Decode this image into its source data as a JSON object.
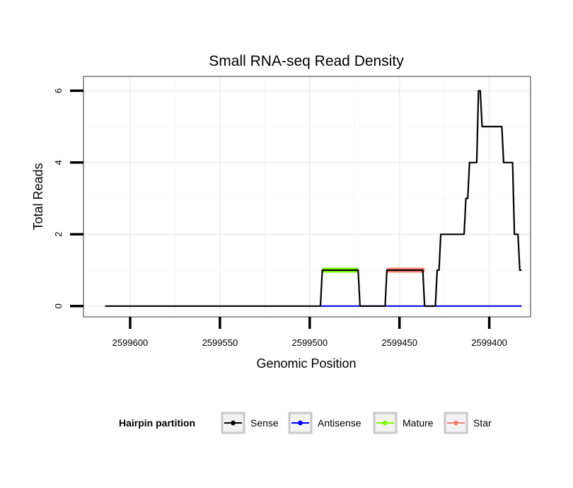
{
  "chart_data": {
    "type": "line",
    "title": "Small RNA-seq Read Density",
    "xlabel": "Genomic Position",
    "ylabel": "Total Reads",
    "x_reversed": true,
    "xlim": [
      2599626,
      2599377
    ],
    "ylim": [
      -0.3,
      6.4
    ],
    "x_ticks": [
      2599600,
      2599550,
      2599500,
      2599450,
      2599400
    ],
    "x_tick_labels": [
      "2599600",
      "2599550",
      "2599500",
      "2599450",
      "2599400"
    ],
    "y_ticks": [
      0,
      2,
      4,
      6
    ],
    "y_tick_labels": [
      "0",
      "2",
      "4",
      "6"
    ],
    "grid": true,
    "legend": {
      "title": "Hairpin partition",
      "position": "bottom",
      "entries": [
        "Sense",
        "Antisense",
        "Mature",
        "Star"
      ]
    },
    "series": [
      {
        "name": "Sense",
        "color": "#000000",
        "x": [
          2599614,
          2599494,
          2599493,
          2599473,
          2599472,
          2599458,
          2599457,
          2599437,
          2599436,
          2599430,
          2599429,
          2599428,
          2599427,
          2599414,
          2599413,
          2599412,
          2599411,
          2599407,
          2599406,
          2599405,
          2599404,
          2599403,
          2599402,
          2599401,
          2599400,
          2599399,
          2599398,
          2599393,
          2599392,
          2599388,
          2599387,
          2599386,
          2599385,
          2599384,
          2599383,
          2599382
        ],
        "y": [
          0,
          0,
          1,
          1,
          0,
          0,
          1,
          1,
          0,
          0,
          1,
          1,
          2,
          2,
          3,
          3,
          4,
          4,
          6,
          6,
          5,
          5,
          5,
          5,
          5,
          5,
          5,
          5,
          4,
          4,
          4,
          2,
          2,
          2,
          1,
          1
        ]
      },
      {
        "name": "Antisense",
        "color": "#0000ff",
        "x": [
          2599494,
          2599382
        ],
        "y": [
          0,
          0
        ]
      },
      {
        "name": "Mature",
        "color": "#7fff00",
        "segments": [
          [
            2599493,
            2599473
          ]
        ],
        "y": 1
      },
      {
        "name": "Star",
        "color": "#fa8072",
        "segments": [
          [
            2599457,
            2599436
          ]
        ],
        "y": 1
      }
    ]
  }
}
